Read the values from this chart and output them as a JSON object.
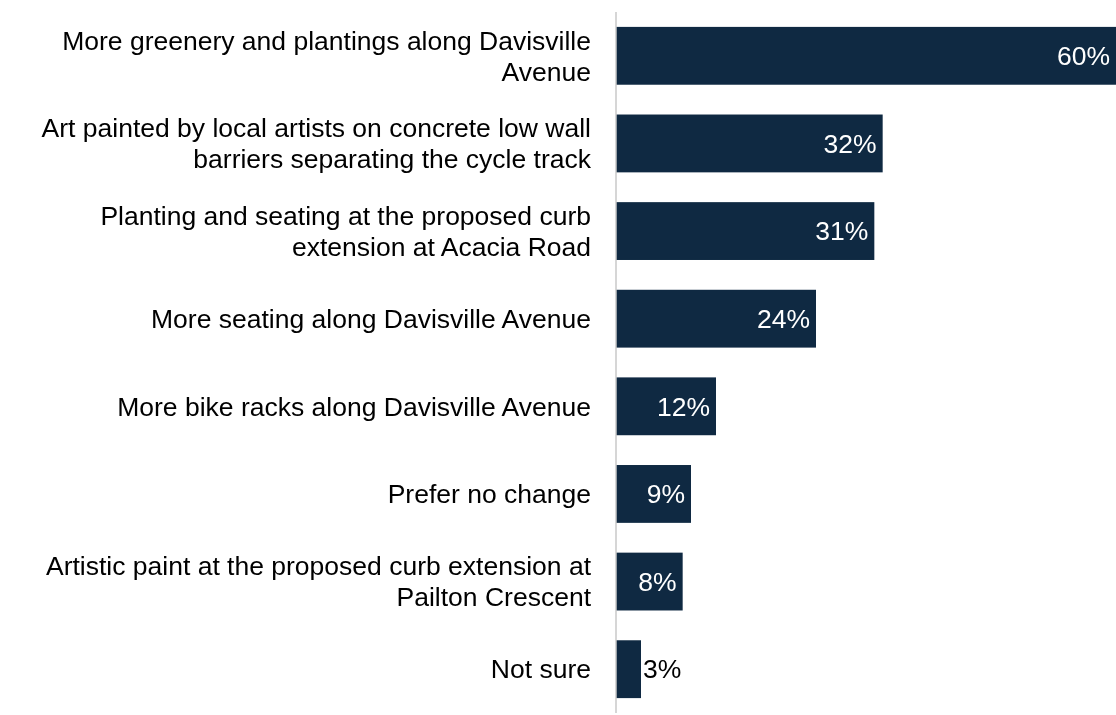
{
  "chart_data": {
    "type": "bar",
    "orientation": "horizontal",
    "categories": [
      "More greenery and plantings along Davisville Avenue",
      "Art painted by local artists on concrete low wall barriers separating the cycle track",
      "Planting and seating at the proposed curb extension at Acacia Road",
      "More seating along Davisville Avenue",
      "More bike racks along Davisville Avenue",
      "Prefer no change",
      "Artistic paint at the proposed curb extension at Pailton Crescent",
      "Not sure"
    ],
    "values": [
      60,
      32,
      31,
      24,
      12,
      9,
      8,
      3
    ],
    "value_labels": [
      "60%",
      "32%",
      "31%",
      "24%",
      "12%",
      "9%",
      "8%",
      "3%"
    ],
    "color": "#0f2942",
    "xlim": [
      0,
      60
    ],
    "tick_labels": "y"
  }
}
